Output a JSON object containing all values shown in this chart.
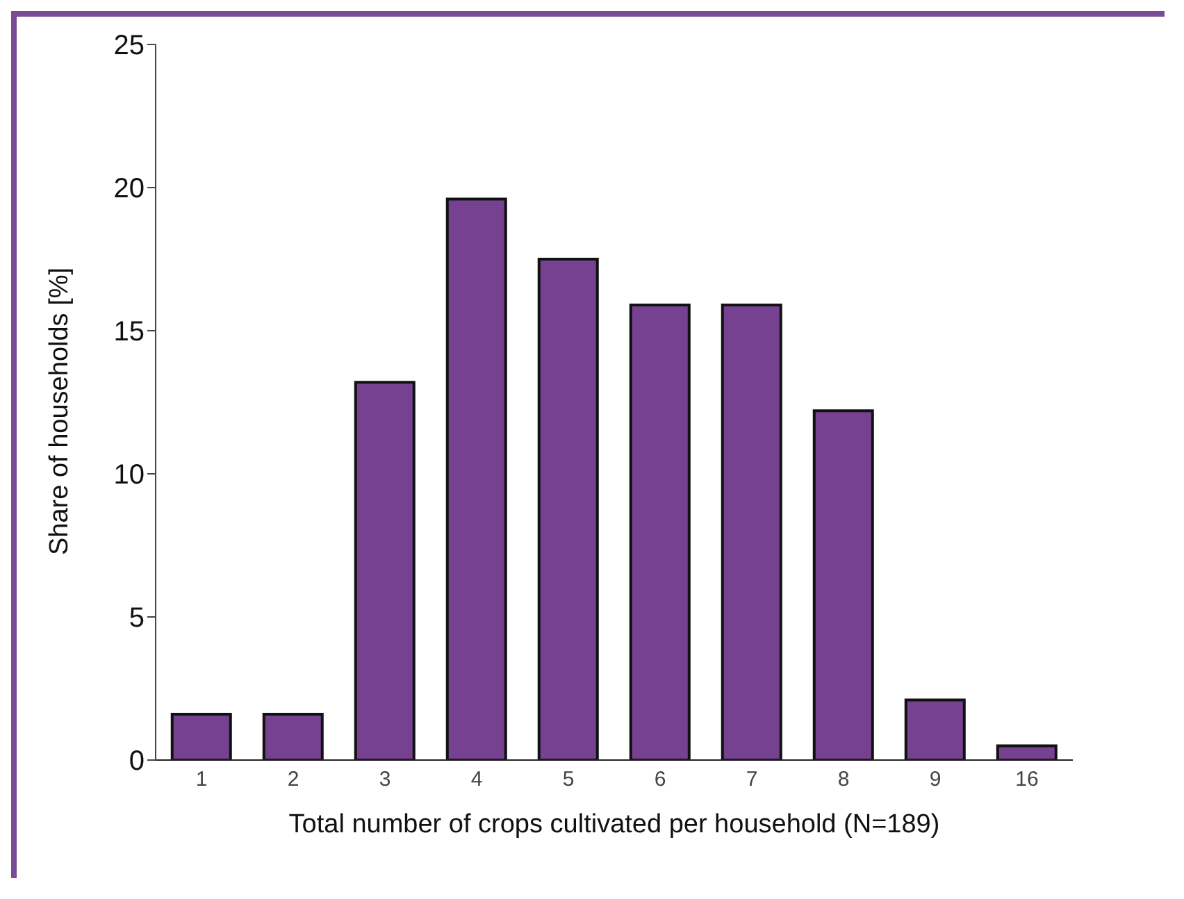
{
  "chart_data": {
    "type": "bar",
    "xlabel": "Total number of crops cultivated per household (N=189)",
    "ylabel": "Share of households [%]",
    "categories": [
      "1",
      "2",
      "3",
      "4",
      "5",
      "6",
      "7",
      "8",
      "9",
      "16"
    ],
    "values": [
      1.6,
      1.6,
      13.2,
      19.6,
      17.5,
      15.9,
      15.9,
      12.2,
      2.1,
      0.5
    ],
    "color": "#764191",
    "ylim": [
      0,
      25
    ],
    "yticks": [
      0,
      5,
      10,
      15,
      20,
      25
    ],
    "grid": false,
    "legend": false
  }
}
